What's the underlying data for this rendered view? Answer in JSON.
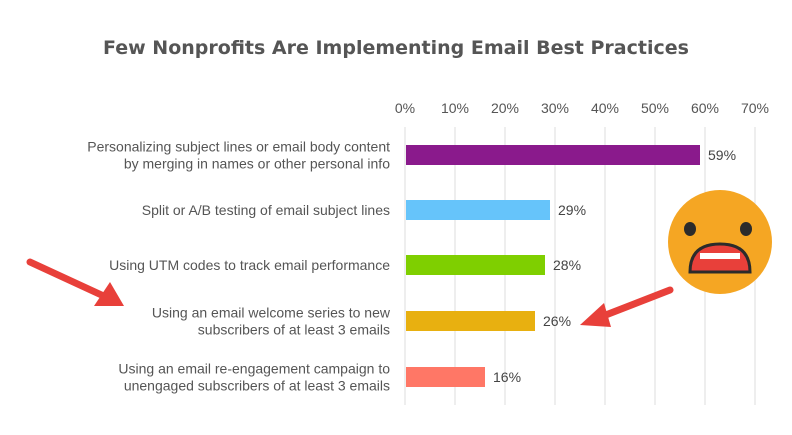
{
  "chart_data": {
    "type": "bar",
    "orientation": "horizontal",
    "title": "Few Nonprofits Are Implementing Email Best Practices",
    "xlim": [
      0,
      70
    ],
    "x_ticks": [
      "0%",
      "10%",
      "20%",
      "30%",
      "40%",
      "50%",
      "60%",
      "70%"
    ],
    "x_tick_values": [
      0,
      10,
      20,
      30,
      40,
      50,
      60,
      70
    ],
    "x_axis_position": "top",
    "grid": true,
    "categories": [
      [
        "Personalizing subject lines or email body content",
        "by merging in names or other personal info"
      ],
      [
        "Split or A/B testing of email subject lines"
      ],
      [
        "Using UTM codes to track email performance"
      ],
      [
        "Using an email welcome series to new",
        "subscribers of at least 3 emails"
      ],
      [
        "Using an email re-engagement campaign to",
        "unengaged subscribers of at least 3 emails"
      ]
    ],
    "values": [
      59,
      29,
      28,
      26,
      16
    ],
    "data_labels": [
      "59%",
      "29%",
      "28%",
      "26%",
      "16%"
    ],
    "colors": [
      "#8a1a8c",
      "#66c4fa",
      "#7fcf00",
      "#e8b010",
      "#ff7766"
    ]
  },
  "decorations": {
    "arrow_color": "#e8403a",
    "emoji": "shocked-face-icon",
    "emoji_fill": "#f5a623",
    "emoji_mouth": "#e8403a"
  }
}
